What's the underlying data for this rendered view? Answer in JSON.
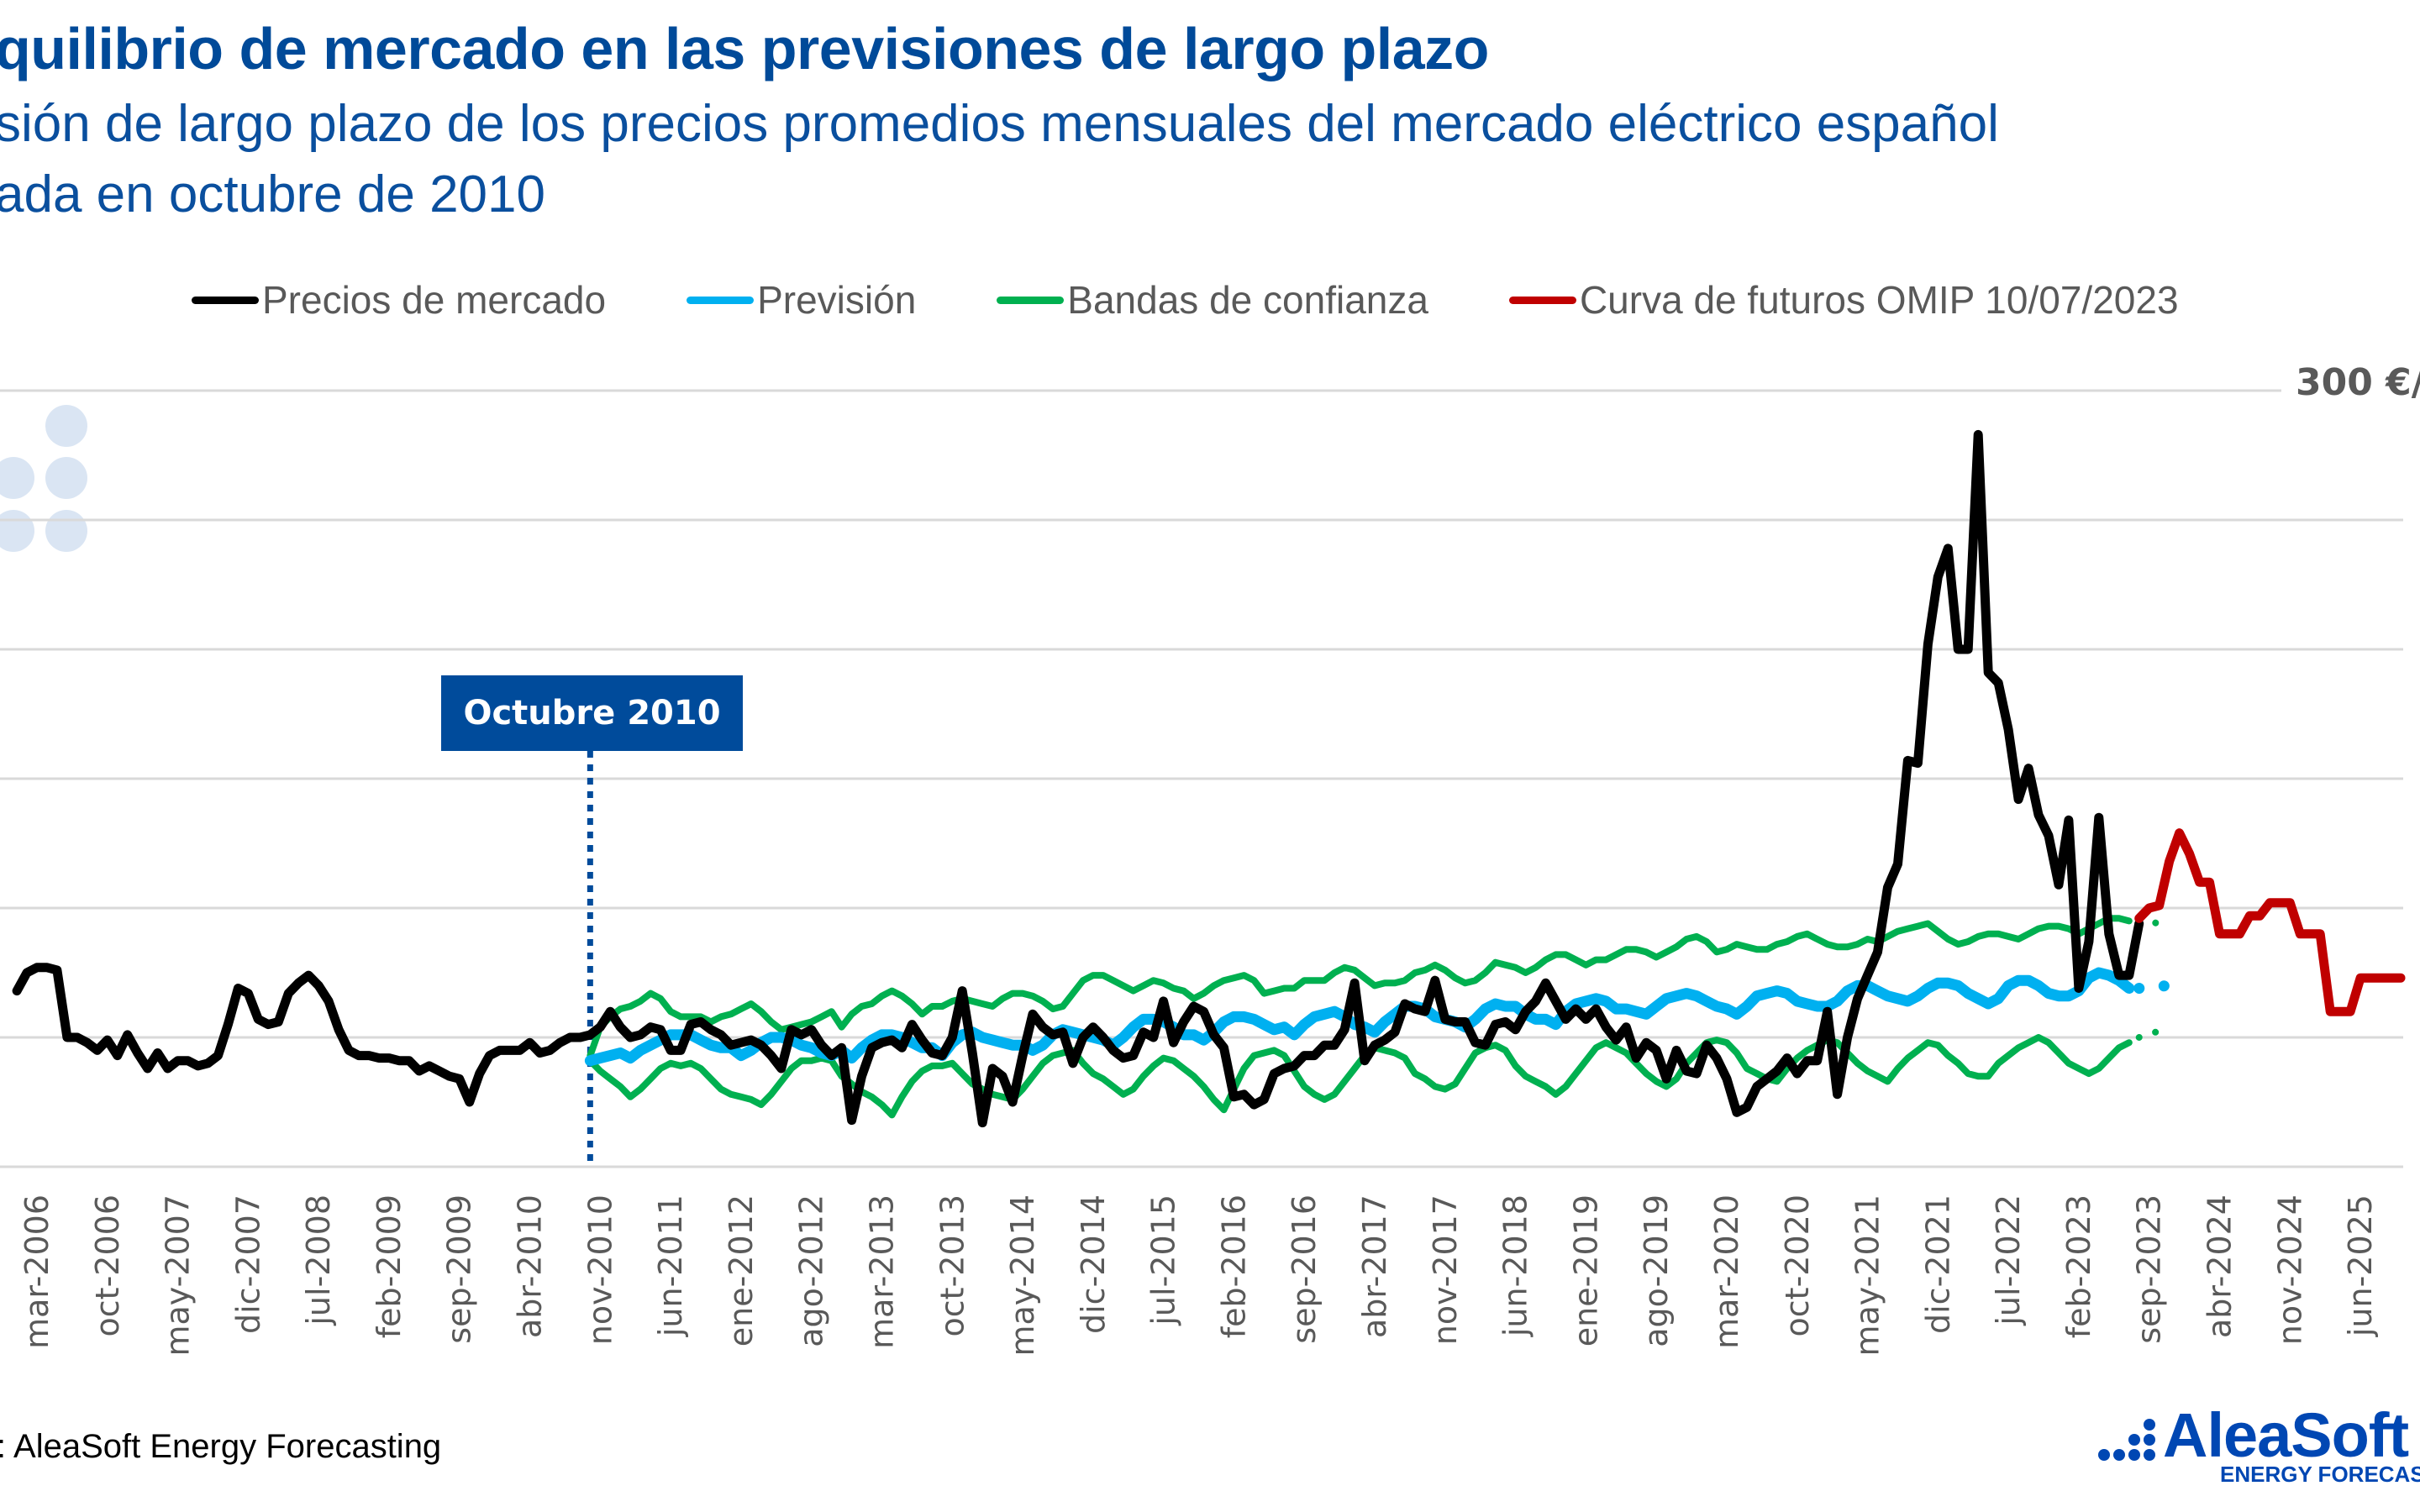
{
  "header": {
    "title": "quilibrio de mercado en las previsiones de largo plazo",
    "subtitle_line1": "sión de largo plazo de los precios promedios mensuales del mercado eléctrico español",
    "subtitle_line2": "ada en octubre de 2010"
  },
  "legend": [
    {
      "label": "Precios de mercado",
      "color": "#000000"
    },
    {
      "label": "Previsión",
      "color": "#00b0f0"
    },
    {
      "label": "Bandas de confianza",
      "color": "#00b050"
    },
    {
      "label": "Curva de futuros OMIP 10/07/2023",
      "color": "#c00000"
    }
  ],
  "annotation": {
    "label": "Octubre 2010",
    "month": "2010-10",
    "color": "#004b9b"
  },
  "unit_label": "300 €/",
  "footer": {
    "source": ": AleaSoft Energy Forecasting",
    "logo_name": "AleaSoft",
    "logo_tagline": "ENERGY FORECAST"
  },
  "chart_data": {
    "type": "line",
    "title": "quilibrio de mercado en las previsiones de largo plazo",
    "xlabel": "",
    "ylabel": "€/MWh",
    "ylim": [
      0,
      300
    ],
    "yticks": [
      0,
      50,
      100,
      150,
      200,
      250,
      300
    ],
    "grid": true,
    "legend_position": "top",
    "x_start": "2006-01",
    "x_end": "2025-12",
    "x_tick_labels": [
      "mar-2006",
      "oct-2006",
      "may-2007",
      "dic-2007",
      "jul-2008",
      "feb-2009",
      "sep-2009",
      "abr-2010",
      "nov-2010",
      "jun-2011",
      "ene-2012",
      "ago-2012",
      "mar-2013",
      "oct-2013",
      "may-2014",
      "dic-2014",
      "jul-2015",
      "feb-2016",
      "sep-2016",
      "abr-2017",
      "nov-2017",
      "jun-2018",
      "ene-2019",
      "ago-2019",
      "mar-2020",
      "oct-2020",
      "may-2021",
      "dic-2021",
      "jul-2022",
      "feb-2023",
      "sep-2023",
      "abr-2024",
      "nov-2024",
      "jun-2025"
    ],
    "x_tick_start": "2006-03",
    "x_tick_step_months": 7,
    "series": [
      {
        "name": "Precios de mercado",
        "color": "#000000",
        "start": "2006-01",
        "values": [
          68,
          75,
          77,
          77,
          76,
          50,
          50,
          48,
          45,
          49,
          43,
          51,
          44,
          38,
          44,
          38,
          41,
          41,
          39,
          40,
          43,
          55,
          69,
          67,
          57,
          55,
          56,
          67,
          71,
          74,
          70,
          64,
          53,
          45,
          43,
          43,
          42,
          42,
          41,
          41,
          37,
          39,
          37,
          35,
          34,
          25,
          36,
          43,
          45,
          45,
          45,
          48,
          44,
          45,
          48,
          50,
          50,
          51,
          54,
          60,
          54,
          50,
          51,
          54,
          53,
          45,
          45,
          55,
          56,
          53,
          51,
          47,
          48,
          49,
          47,
          43,
          38,
          53,
          51,
          53,
          47,
          43,
          46,
          18,
          35,
          46,
          48,
          49,
          46,
          55,
          49,
          44,
          43,
          50,
          68,
          44,
          17,
          38,
          35,
          25,
          43,
          59,
          54,
          51,
          52,
          40,
          50,
          54,
          50,
          45,
          42,
          43,
          52,
          50,
          64,
          48,
          56,
          62,
          60,
          51,
          46,
          27,
          28,
          24,
          26,
          36,
          38,
          39,
          43,
          43,
          47,
          47,
          53,
          71,
          41,
          47,
          49,
          52,
          63,
          61,
          60,
          72,
          57,
          56,
          56,
          48,
          47,
          55,
          56,
          53,
          60,
          64,
          71,
          64,
          57,
          61,
          57,
          61,
          54,
          49,
          54,
          42,
          48,
          45,
          34,
          45,
          37,
          36,
          47,
          42,
          34,
          21,
          23,
          31,
          34,
          37,
          42,
          36,
          41,
          41,
          60,
          28,
          50,
          65,
          74,
          83,
          108,
          117,
          157,
          156,
          202,
          228,
          239,
          200,
          200,
          283,
          191,
          187,
          169,
          142,
          154,
          136,
          128,
          109,
          134,
          69,
          87,
          135,
          90,
          74,
          74,
          94
        ]
      },
      {
        "name": "Previsión",
        "color": "#00b0f0",
        "start": "2010-10",
        "values": [
          41,
          42,
          43,
          44,
          42,
          45,
          47,
          49,
          51,
          51,
          51,
          49,
          47,
          46,
          46,
          43,
          45,
          48,
          50,
          50,
          49,
          47,
          46,
          44,
          43,
          45,
          42,
          46,
          49,
          51,
          51,
          50,
          48,
          46,
          46,
          43,
          48,
          51,
          52,
          50,
          49,
          48,
          47,
          47,
          45,
          47,
          51,
          53,
          52,
          51,
          50,
          49,
          47,
          50,
          54,
          57,
          57,
          56,
          54,
          51,
          51,
          49,
          52,
          56,
          58,
          58,
          57,
          55,
          53,
          54,
          51,
          55,
          58,
          59,
          60,
          58,
          55,
          54,
          52,
          56,
          59,
          62,
          62,
          61,
          58,
          57,
          56,
          54,
          57,
          61,
          63,
          62,
          62,
          59,
          57,
          57,
          55,
          60,
          63,
          64,
          65,
          64,
          61,
          61,
          60,
          59,
          62,
          65,
          66,
          67,
          66,
          64,
          62,
          61,
          59,
          62,
          66,
          67,
          68,
          67,
          64,
          63,
          62,
          62,
          64,
          68,
          70,
          70,
          68,
          66,
          65,
          64,
          66,
          69,
          71,
          71,
          70,
          67,
          65,
          63,
          65,
          70,
          72,
          72,
          70,
          67,
          66,
          66,
          68,
          73,
          75,
          74,
          72,
          69,
          69,
          67,
          68,
          72
        ],
        "note": "solid through 2023-07, dotted thereafter"
      },
      {
        "name": "Bandas de confianza (superior)",
        "color": "#00b050",
        "start": "2010-10",
        "values": [
          43,
          54,
          58,
          61,
          62,
          64,
          67,
          65,
          60,
          58,
          58,
          58,
          56,
          58,
          59,
          61,
          63,
          60,
          56,
          53,
          54,
          55,
          56,
          58,
          60,
          54,
          59,
          62,
          63,
          66,
          68,
          66,
          63,
          59,
          62,
          62,
          64,
          65,
          64,
          63,
          62,
          65,
          67,
          67,
          66,
          64,
          61,
          62,
          67,
          72,
          74,
          74,
          72,
          70,
          68,
          70,
          72,
          71,
          69,
          68,
          65,
          67,
          70,
          72,
          73,
          74,
          72,
          67,
          68,
          69,
          69,
          72,
          72,
          72,
          75,
          77,
          76,
          73,
          70,
          71,
          71,
          72,
          75,
          76,
          78,
          76,
          73,
          71,
          72,
          75,
          79,
          78,
          77,
          75,
          77,
          80,
          82,
          82,
          80,
          78,
          80,
          80,
          82,
          84,
          84,
          83,
          81,
          83,
          85,
          88,
          89,
          87,
          83,
          84,
          86,
          85,
          84,
          84,
          86,
          87,
          89,
          90,
          88,
          86,
          85,
          85,
          86,
          88,
          87,
          89,
          91,
          92,
          93,
          94,
          91,
          88,
          86,
          87,
          89,
          90,
          90,
          89,
          88,
          90,
          92,
          93,
          93,
          92,
          90,
          92,
          94,
          96,
          96,
          95,
          94,
          93,
          95,
          98
        ],
        "note": "solid through 2023-07, dotted thereafter"
      },
      {
        "name": "Bandas de confianza (inferior)",
        "color": "#00b050",
        "start": "2010-10",
        "values": [
          41,
          37,
          34,
          31,
          27,
          30,
          34,
          38,
          40,
          39,
          40,
          38,
          34,
          30,
          28,
          27,
          26,
          24,
          28,
          33,
          38,
          41,
          41,
          42,
          41,
          35,
          32,
          29,
          27,
          24,
          20,
          27,
          33,
          37,
          39,
          39,
          40,
          36,
          32,
          30,
          28,
          27,
          26,
          30,
          35,
          40,
          43,
          44,
          45,
          40,
          36,
          34,
          31,
          28,
          30,
          35,
          39,
          42,
          41,
          38,
          35,
          31,
          26,
          22,
          30,
          38,
          43,
          44,
          45,
          43,
          37,
          31,
          28,
          26,
          28,
          33,
          38,
          43,
          46,
          45,
          44,
          42,
          36,
          34,
          31,
          30,
          32,
          38,
          44,
          46,
          47,
          45,
          39,
          35,
          33,
          31,
          28,
          31,
          36,
          41,
          46,
          48,
          46,
          44,
          40,
          36,
          33,
          31,
          34,
          40,
          44,
          48,
          49,
          48,
          44,
          38,
          36,
          34,
          33,
          38,
          42,
          45,
          47,
          49,
          48,
          44,
          40,
          37,
          35,
          33,
          38,
          42,
          45,
          48,
          47,
          43,
          40,
          36,
          35,
          35,
          40,
          43,
          46,
          48,
          50,
          48,
          44,
          40,
          38,
          36,
          38,
          42,
          46,
          48,
          50,
          52,
          52,
          50
        ],
        "note": "solid through 2023-07, dotted thereafter"
      },
      {
        "name": "Curva de futuros OMIP 10/07/2023",
        "color": "#c00000",
        "start": "2023-08",
        "values": [
          96,
          100,
          101,
          118,
          129,
          121,
          110,
          110,
          90,
          90,
          90,
          97,
          97,
          102,
          102,
          102,
          90,
          90,
          90,
          60,
          60,
          60,
          73,
          73,
          73,
          73,
          73
        ]
      }
    ],
    "forecast_dotted_from": "2023-08"
  }
}
